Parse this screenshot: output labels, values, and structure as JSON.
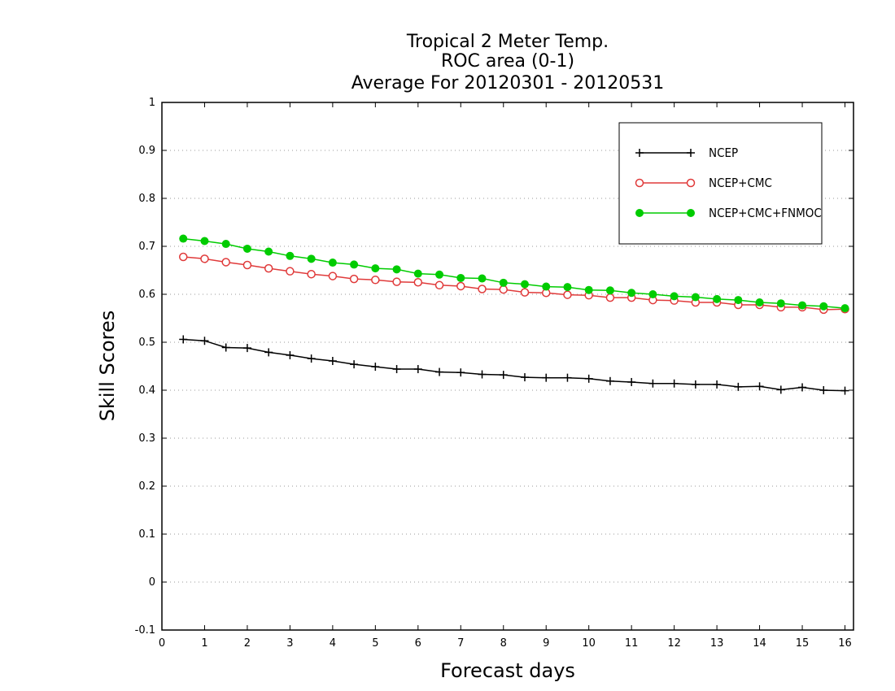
{
  "chart_data": {
    "type": "line",
    "title": [
      "Tropical 2 Meter Temp.",
      "ROC area (0-1)",
      "Average For 20120301 - 20120531"
    ],
    "xlabel": "Forecast days",
    "ylabel": "Skill Scores",
    "xlim": [
      0,
      16.2
    ],
    "ylim": [
      -0.1,
      1
    ],
    "x_ticks": [
      0,
      1,
      2,
      3,
      4,
      5,
      6,
      7,
      8,
      9,
      10,
      11,
      12,
      13,
      14,
      15,
      16
    ],
    "y_ticks": [
      -0.1,
      0,
      0.1,
      0.2,
      0.3,
      0.4,
      0.5,
      0.6,
      0.7,
      0.8,
      0.9,
      1
    ],
    "y_tick_labels": [
      "-0.1",
      "0",
      "0.1",
      "0.2",
      "0.3",
      "0.4",
      "0.5",
      "0.6",
      "0.7",
      "0.8",
      "0.9",
      "1"
    ],
    "grid": "horizontal dotted",
    "legend_position": "top-right",
    "x": [
      0.5,
      1,
      1.5,
      2,
      2.5,
      3,
      3.5,
      4,
      4.5,
      5,
      5.5,
      6,
      6.5,
      7,
      7.5,
      8,
      8.5,
      9,
      9.5,
      10,
      10.5,
      11,
      11.5,
      12,
      12.5,
      13,
      13.5,
      14,
      14.5,
      15,
      15.5,
      16
    ],
    "series": [
      {
        "name": "NCEP",
        "color": "#000000",
        "marker": "plus",
        "values": [
          0.506,
          0.503,
          0.489,
          0.488,
          0.479,
          0.473,
          0.466,
          0.461,
          0.454,
          0.449,
          0.444,
          0.444,
          0.438,
          0.437,
          0.433,
          0.432,
          0.427,
          0.426,
          0.426,
          0.424,
          0.419,
          0.417,
          0.414,
          0.414,
          0.412,
          0.412,
          0.407,
          0.408,
          0.401,
          0.406,
          0.4,
          0.399
        ]
      },
      {
        "name": "NCEP+CMC",
        "color": "#e03a3a",
        "marker": "open-circle",
        "values": [
          0.678,
          0.674,
          0.667,
          0.661,
          0.654,
          0.648,
          0.642,
          0.638,
          0.632,
          0.63,
          0.626,
          0.625,
          0.619,
          0.617,
          0.611,
          0.61,
          0.604,
          0.603,
          0.599,
          0.598,
          0.593,
          0.593,
          0.588,
          0.587,
          0.583,
          0.583,
          0.578,
          0.578,
          0.573,
          0.573,
          0.568,
          0.569
        ]
      },
      {
        "name": "NCEP+CMC+FNMOC",
        "color": "#00cc00",
        "marker": "filled-circle",
        "values": [
          0.716,
          0.711,
          0.705,
          0.695,
          0.689,
          0.68,
          0.674,
          0.666,
          0.662,
          0.654,
          0.652,
          0.643,
          0.641,
          0.634,
          0.633,
          0.624,
          0.621,
          0.616,
          0.615,
          0.609,
          0.608,
          0.603,
          0.6,
          0.596,
          0.594,
          0.59,
          0.588,
          0.583,
          0.581,
          0.577,
          0.575,
          0.571
        ]
      }
    ]
  }
}
